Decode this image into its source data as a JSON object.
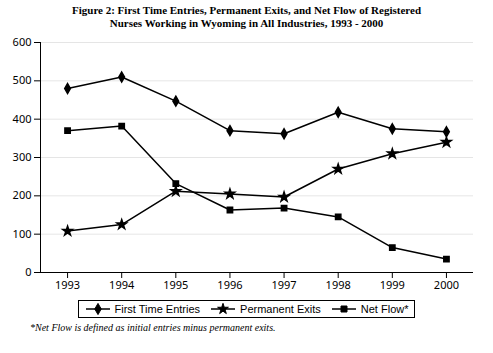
{
  "chart_data": {
    "type": "line",
    "title": "Figure 2: First Time Entries, Permanent Exits, and Net Flow of Registered\nNurses Working in Wyoming in All Industries, 1993 - 2000",
    "caption": "*Net Flow is defined as initial entries minus permanent exits.",
    "x": [
      1993,
      1994,
      1995,
      1996,
      1997,
      1998,
      1999,
      2000
    ],
    "series": [
      {
        "name": "First Time Entries",
        "color": "black",
        "marker": "diamond",
        "values": [
          480,
          510,
          447,
          370,
          362,
          418,
          375,
          367
        ]
      },
      {
        "name": "Permanent Exits",
        "color": "black",
        "marker": "star",
        "values": [
          108,
          125,
          212,
          205,
          197,
          270,
          310,
          340
        ]
      },
      {
        "name": "Net Flow*",
        "color": "black",
        "marker": "square",
        "values": [
          370,
          382,
          232,
          163,
          168,
          145,
          65,
          35
        ]
      }
    ],
    "xlim": [
      1992.5,
      2000.5
    ],
    "xticks": [
      1993,
      1994,
      1995,
      1996,
      1997,
      1998,
      1999,
      2000
    ],
    "ylim": [
      0,
      600
    ],
    "yticks": [
      0,
      100,
      200,
      300,
      400,
      500,
      600
    ],
    "grid": "y",
    "legend": "bottom"
  }
}
